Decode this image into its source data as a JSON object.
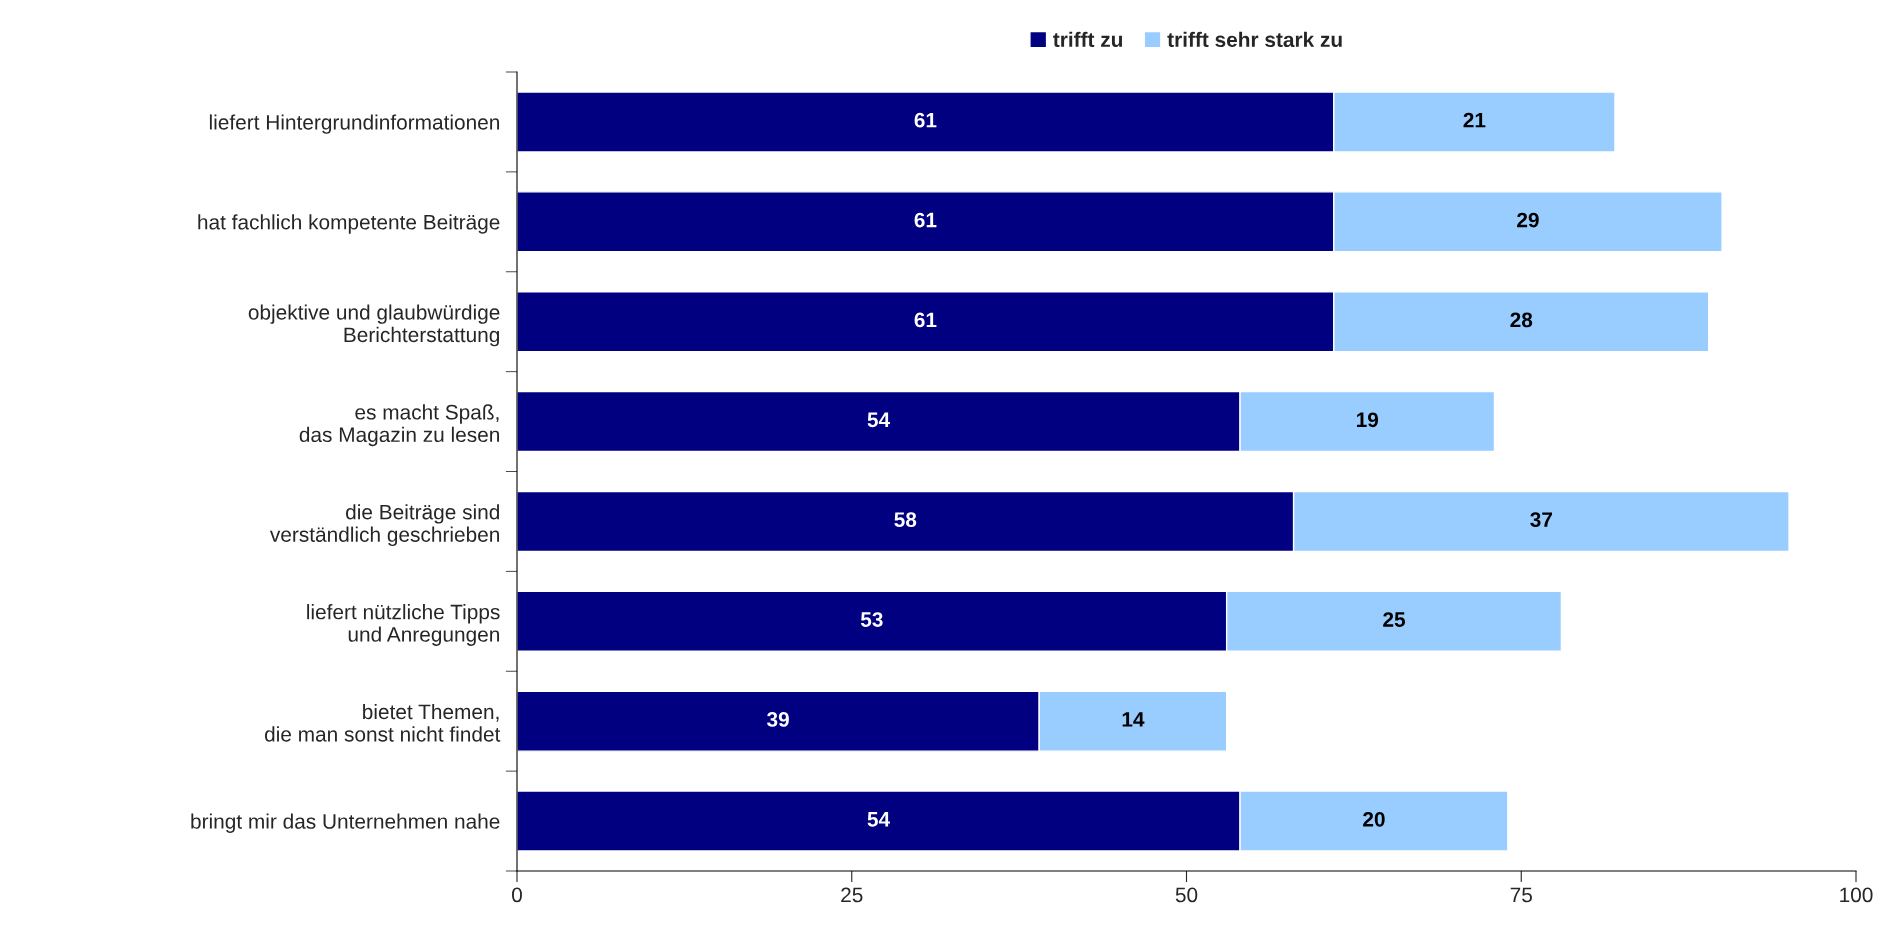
{
  "chart_data": {
    "type": "bar",
    "orientation": "horizontal",
    "stacked": true,
    "categories": [
      "liefert Hintergrundinformationen",
      "hat fachlich kompetente Beiträge",
      "objektive und glaubwürdige\nBerichterstattung",
      "es macht Spaß,\ndas Magazin zu lesen",
      "die Beiträge sind\nverständlich geschrieben",
      "liefert nützliche Tipps\nund Anregungen",
      "bietet Themen,\ndie man sonst nicht findet",
      "bringt mir das Unternehmen nahe"
    ],
    "series": [
      {
        "name": "trifft zu",
        "color": "#000080",
        "values": [
          61,
          61,
          61,
          54,
          58,
          53,
          39,
          54
        ]
      },
      {
        "name": "trifft sehr stark zu",
        "color": "#99ccff",
        "values": [
          21,
          29,
          28,
          19,
          37,
          25,
          14,
          20
        ]
      }
    ],
    "xlim": [
      0,
      100
    ],
    "xticks": [
      0,
      25,
      50,
      75,
      100
    ],
    "grid": false,
    "legend": "top",
    "data_labels": true
  }
}
